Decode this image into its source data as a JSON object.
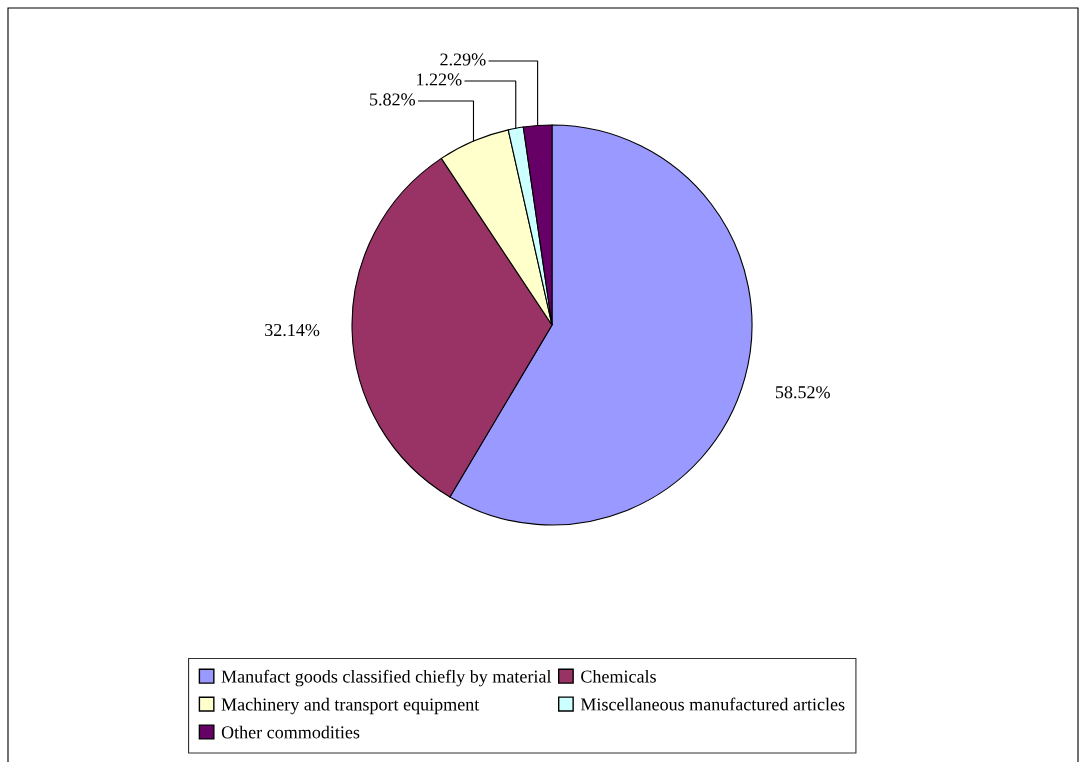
{
  "chart_data": {
    "type": "pie",
    "categories": [
      "Manufact goods classified chiefly by material",
      "Chemicals",
      "Machinery and transport equipment",
      "Miscellaneous manufactured articles",
      "Other commodities"
    ],
    "values": [
      58.52,
      32.14,
      5.82,
      1.22,
      2.29
    ],
    "value_labels": [
      "58.52%",
      "32.14%",
      "5.82%",
      "1.22%",
      "2.29%"
    ],
    "colors": [
      "#9999ff",
      "#993366",
      "#ffffcc",
      "#ccffff",
      "#660066"
    ],
    "legend": "bottom"
  }
}
